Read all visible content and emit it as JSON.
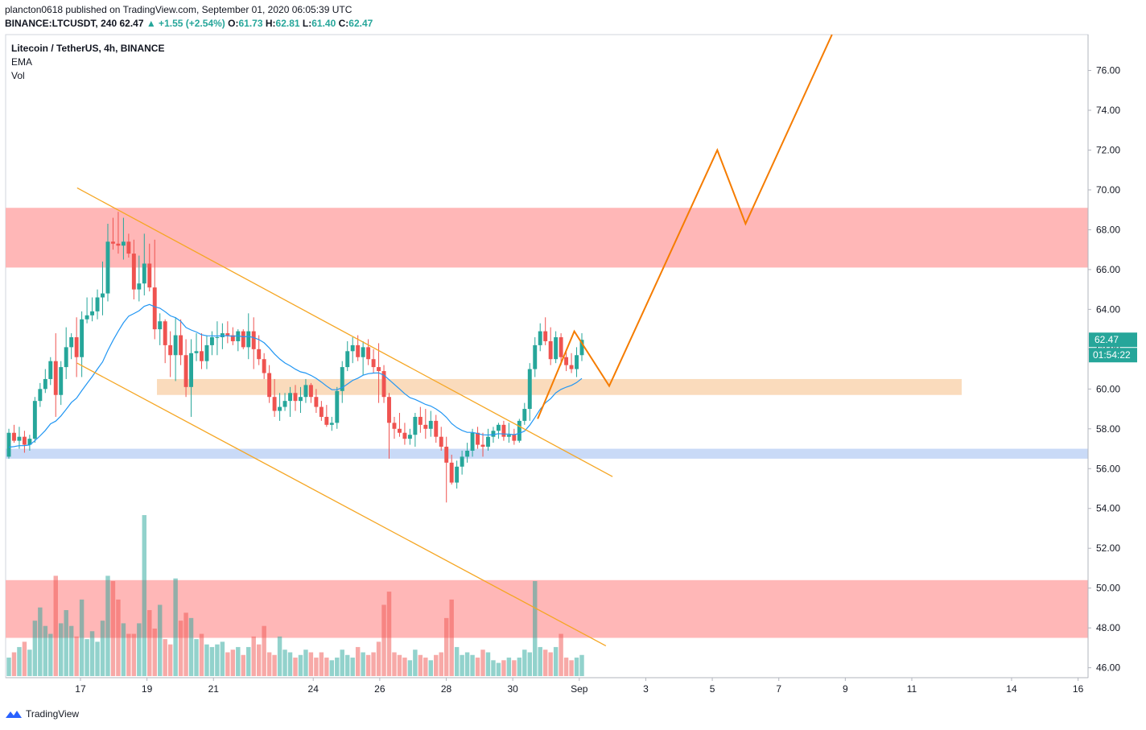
{
  "header": {
    "line1": "plancton0618 published on TradingView.com, September 01, 2020 06:05:39 UTC",
    "symbol": "BINANCE:LTCUSDT, 240",
    "last": "62.47",
    "change": "▲ +1.55 (+2.54%)",
    "o_label": "O:",
    "o": "61.73",
    "h_label": "H:",
    "h": "62.81",
    "l_label": "L:",
    "l": "61.40",
    "c_label": "C:",
    "c": "62.47"
  },
  "legend": {
    "title": "Litecoin / TetherUS, 4h, BINANCE",
    "ema": "EMA",
    "vol": "Vol"
  },
  "price_tag": {
    "value": "62.47",
    "countdown": "01:54:22",
    "color": "#26a69a"
  },
  "footer": {
    "brand": "TradingView"
  },
  "colors": {
    "up": "#26a69a",
    "down": "#ef5350",
    "ema": "#2196f3",
    "projection": "#f57c00",
    "channel": "#f5a623",
    "resistance_zone": "#ffb3b3",
    "support_zone": "#fad7b5",
    "demand_zone": "#c6d8f7"
  },
  "chart_data": {
    "type": "candlestick",
    "title": "Litecoin / TetherUS, 4h, BINANCE",
    "y_ticks": [
      "76.00",
      "74.00",
      "72.00",
      "70.00",
      "68.00",
      "66.00",
      "64.00",
      "62.00",
      "60.00",
      "58.00",
      "56.00",
      "54.00",
      "52.00",
      "50.00",
      "48.00",
      "46.00"
    ],
    "x_ticks": [
      {
        "label": "17",
        "d": 17
      },
      {
        "label": "19",
        "d": 19
      },
      {
        "label": "21",
        "d": 21
      },
      {
        "label": "24",
        "d": 24
      },
      {
        "label": "26",
        "d": 26
      },
      {
        "label": "28",
        "d": 28
      },
      {
        "label": "30",
        "d": 30
      },
      {
        "label": "Sep",
        "d": 32
      },
      {
        "label": "3",
        "d": 34
      },
      {
        "label": "5",
        "d": 36
      },
      {
        "label": "7",
        "d": 38
      },
      {
        "label": "9",
        "d": 40
      },
      {
        "label": "11",
        "d": 42
      },
      {
        "label": "14",
        "d": 45
      },
      {
        "label": "16",
        "d": 47
      }
    ],
    "ylim": [
      45.5,
      77.8
    ],
    "xlim_day": [
      14.75,
      47.3
    ],
    "zones": [
      {
        "name": "resistance",
        "y1": 66.1,
        "y2": 69.1,
        "d1": 14.75,
        "d2": 47.3
      },
      {
        "name": "support",
        "y1": 59.7,
        "y2": 60.5,
        "d1": 19.3,
        "d2": 43.5
      },
      {
        "name": "demand",
        "y1": 56.5,
        "y2": 57.0,
        "d1": 14.75,
        "d2": 47.3
      },
      {
        "name": "volume-zone",
        "y1": 47.5,
        "y2": 50.4,
        "d1": 14.75,
        "d2": 47.3
      }
    ],
    "channel_lines": [
      {
        "d1": 16.9,
        "y1": 70.1,
        "d2": 33.0,
        "y2": 55.6
      },
      {
        "d1": 16.9,
        "y1": 61.3,
        "d2": 32.8,
        "y2": 47.1
      }
    ],
    "projection": [
      {
        "d": 30.75,
        "y": 58.5
      },
      {
        "d": 31.85,
        "y": 62.9
      },
      {
        "d": 32.9,
        "y": 60.15
      },
      {
        "d": 36.15,
        "y": 72.0
      },
      {
        "d": 37.0,
        "y": 68.3
      },
      {
        "d": 39.6,
        "y": 77.8
      }
    ],
    "candles": [
      [
        56.6,
        58.0,
        56.5,
        57.8
      ],
      [
        57.8,
        58.2,
        57.3,
        57.4
      ],
      [
        57.4,
        58.1,
        57.0,
        57.6
      ],
      [
        57.6,
        57.9,
        56.8,
        57.2
      ],
      [
        57.2,
        57.7,
        56.9,
        57.5
      ],
      [
        57.5,
        59.6,
        57.3,
        59.4
      ],
      [
        59.4,
        60.3,
        59.1,
        60.0
      ],
      [
        60.0,
        61.0,
        59.8,
        60.5
      ],
      [
        60.5,
        61.6,
        60.2,
        61.4
      ],
      [
        61.4,
        62.8,
        58.6,
        59.7
      ],
      [
        59.7,
        61.4,
        59.2,
        61.1
      ],
      [
        61.1,
        63.1,
        60.5,
        62.1
      ],
      [
        62.1,
        62.8,
        61.5,
        62.6
      ],
      [
        62.6,
        63.6,
        60.6,
        61.6
      ],
      [
        61.6,
        63.9,
        60.6,
        63.5
      ],
      [
        63.5,
        64.6,
        63.3,
        63.7
      ],
      [
        63.7,
        64.6,
        63.4,
        63.9
      ],
      [
        63.9,
        65.0,
        63.5,
        64.6
      ],
      [
        64.6,
        66.4,
        63.7,
        64.8
      ],
      [
        64.8,
        68.3,
        64.4,
        67.4
      ],
      [
        67.4,
        68.6,
        67.0,
        67.3
      ],
      [
        67.3,
        68.9,
        66.8,
        67.2
      ],
      [
        67.2,
        68.6,
        66.5,
        67.4
      ],
      [
        67.4,
        67.8,
        66.6,
        66.8
      ],
      [
        66.8,
        67.5,
        64.5,
        65.0
      ],
      [
        65.0,
        66.7,
        64.4,
        65.3
      ],
      [
        65.3,
        67.8,
        64.7,
        66.3
      ],
      [
        66.3,
        67.3,
        64.9,
        65.1
      ],
      [
        65.1,
        67.5,
        62.5,
        63.0
      ],
      [
        63.0,
        63.8,
        62.2,
        63.4
      ],
      [
        63.4,
        63.5,
        61.3,
        62.2
      ],
      [
        62.2,
        62.9,
        60.6,
        61.7
      ],
      [
        61.7,
        63.6,
        60.4,
        62.7
      ],
      [
        62.7,
        63.5,
        61.2,
        61.7
      ],
      [
        61.7,
        62.5,
        59.6,
        60.1
      ],
      [
        60.1,
        62.5,
        58.6,
        61.8
      ],
      [
        61.8,
        62.8,
        61.4,
        61.9
      ],
      [
        61.9,
        62.8,
        61.0,
        61.4
      ],
      [
        61.4,
        62.7,
        61.0,
        62.2
      ],
      [
        62.2,
        62.9,
        61.7,
        62.6
      ],
      [
        62.6,
        63.4,
        61.7,
        62.6
      ],
      [
        62.6,
        63.3,
        62.0,
        62.8
      ],
      [
        62.8,
        63.4,
        62.3,
        62.7
      ],
      [
        62.7,
        63.1,
        62.2,
        62.4
      ],
      [
        62.4,
        63.0,
        61.9,
        62.9
      ],
      [
        62.9,
        63.0,
        62.0,
        62.1
      ],
      [
        62.1,
        63.8,
        61.5,
        62.9
      ],
      [
        62.9,
        63.6,
        61.0,
        62.0
      ],
      [
        62.0,
        62.7,
        61.2,
        61.5
      ],
      [
        61.5,
        61.8,
        60.5,
        60.8
      ],
      [
        60.8,
        61.2,
        59.3,
        59.6
      ],
      [
        59.6,
        60.5,
        58.6,
        58.9
      ],
      [
        58.9,
        59.8,
        58.4,
        59.1
      ],
      [
        59.1,
        59.8,
        58.9,
        59.4
      ],
      [
        59.4,
        60.1,
        58.6,
        59.8
      ],
      [
        59.8,
        60.2,
        58.9,
        59.4
      ],
      [
        59.4,
        60.1,
        58.8,
        59.6
      ],
      [
        59.6,
        60.5,
        59.3,
        60.2
      ],
      [
        60.2,
        60.3,
        59.3,
        59.6
      ],
      [
        59.6,
        60.0,
        58.8,
        59.1
      ],
      [
        59.1,
        59.4,
        58.4,
        58.6
      ],
      [
        58.6,
        59.2,
        58.1,
        58.2
      ],
      [
        58.2,
        58.6,
        57.9,
        58.3
      ],
      [
        58.3,
        60.1,
        58.0,
        59.9
      ],
      [
        59.9,
        61.4,
        59.3,
        61.1
      ],
      [
        61.1,
        62.4,
        60.9,
        61.9
      ],
      [
        61.9,
        62.6,
        61.3,
        62.2
      ],
      [
        62.2,
        62.7,
        61.4,
        61.6
      ],
      [
        61.6,
        62.4,
        60.7,
        62.1
      ],
      [
        62.1,
        62.5,
        61.2,
        61.5
      ],
      [
        61.5,
        62.0,
        60.8,
        61.1
      ],
      [
        61.1,
        62.3,
        59.3,
        60.9
      ],
      [
        60.9,
        61.2,
        59.3,
        59.6
      ],
      [
        59.6,
        59.8,
        56.5,
        58.3
      ],
      [
        58.3,
        58.6,
        57.5,
        58.0
      ],
      [
        58.0,
        58.8,
        57.6,
        57.8
      ],
      [
        57.8,
        58.3,
        57.2,
        57.5
      ],
      [
        57.5,
        58.0,
        57.2,
        57.7
      ],
      [
        57.7,
        58.8,
        57.1,
        58.6
      ],
      [
        58.6,
        59.1,
        57.8,
        58.2
      ],
      [
        58.2,
        59.0,
        57.5,
        58.0
      ],
      [
        58.0,
        58.9,
        57.6,
        58.4
      ],
      [
        58.4,
        58.7,
        57.3,
        57.6
      ],
      [
        57.6,
        58.1,
        56.9,
        57.1
      ],
      [
        57.1,
        57.6,
        54.3,
        56.3
      ],
      [
        56.3,
        56.7,
        55.2,
        55.3
      ],
      [
        55.3,
        56.4,
        55.0,
        56.1
      ],
      [
        56.1,
        56.9,
        55.7,
        56.6
      ],
      [
        56.6,
        57.3,
        56.3,
        56.9
      ],
      [
        56.9,
        58.0,
        56.6,
        57.8
      ],
      [
        57.8,
        58.1,
        57.0,
        57.2
      ],
      [
        57.2,
        57.8,
        56.6,
        57.1
      ],
      [
        57.1,
        58.0,
        56.9,
        57.6
      ],
      [
        57.6,
        58.1,
        57.3,
        57.9
      ],
      [
        57.9,
        58.3,
        57.5,
        58.2
      ],
      [
        58.2,
        58.4,
        57.4,
        57.6
      ],
      [
        57.6,
        58.3,
        57.3,
        57.7
      ],
      [
        57.7,
        58.0,
        57.2,
        57.4
      ],
      [
        57.4,
        58.5,
        57.3,
        58.4
      ],
      [
        58.4,
        59.3,
        58.2,
        59.0
      ],
      [
        59.0,
        61.3,
        58.4,
        61.0
      ],
      [
        61.0,
        62.6,
        60.6,
        62.2
      ],
      [
        62.2,
        63.3,
        61.9,
        62.9
      ],
      [
        62.9,
        63.6,
        62.2,
        62.4
      ],
      [
        62.4,
        63.1,
        61.2,
        61.5
      ],
      [
        61.5,
        62.9,
        61.3,
        62.6
      ],
      [
        62.6,
        62.8,
        61.2,
        61.6
      ],
      [
        61.6,
        61.9,
        60.9,
        61.2
      ],
      [
        61.2,
        61.8,
        60.8,
        61.0
      ],
      [
        61.0,
        62.1,
        60.6,
        61.7
      ],
      [
        61.7,
        62.8,
        61.4,
        62.47
      ]
    ],
    "volume": [
      {
        "v": 0.7
      },
      {
        "v": 0.9
      },
      {
        "v": 1.1
      },
      {
        "v": 1.3
      },
      {
        "v": 1.0
      },
      {
        "v": 2.1
      },
      {
        "v": 2.6
      },
      {
        "v": 1.9
      },
      {
        "v": 1.6
      },
      {
        "v": 3.8
      },
      {
        "v": 2.0
      },
      {
        "v": 2.5
      },
      {
        "v": 1.9
      },
      {
        "v": 1.5
      },
      {
        "v": 2.9
      },
      {
        "v": 1.4
      },
      {
        "v": 1.7
      },
      {
        "v": 1.3
      },
      {
        "v": 2.1
      },
      {
        "v": 3.8
      },
      {
        "v": 3.6
      },
      {
        "v": 2.9
      },
      {
        "v": 2.0
      },
      {
        "v": 1.6
      },
      {
        "v": 1.6
      },
      {
        "v": 2.0
      },
      {
        "v": 6.1
      },
      {
        "v": 2.5
      },
      {
        "v": 1.8
      },
      {
        "v": 2.7
      },
      {
        "v": 1.4
      },
      {
        "v": 1.2
      },
      {
        "v": 3.7
      },
      {
        "v": 2.1
      },
      {
        "v": 2.4
      },
      {
        "v": 2.2
      },
      {
        "v": 1.4
      },
      {
        "v": 1.6
      },
      {
        "v": 1.2
      },
      {
        "v": 1.1
      },
      {
        "v": 1.2
      },
      {
        "v": 1.3
      },
      {
        "v": 0.9
      },
      {
        "v": 1.0
      },
      {
        "v": 1.1
      },
      {
        "v": 0.8
      },
      {
        "v": 1.1
      },
      {
        "v": 1.5
      },
      {
        "v": 1.2
      },
      {
        "v": 1.9
      },
      {
        "v": 0.9
      },
      {
        "v": 0.8
      },
      {
        "v": 1.5
      },
      {
        "v": 1.0
      },
      {
        "v": 0.9
      },
      {
        "v": 0.7
      },
      {
        "v": 0.8
      },
      {
        "v": 1.0
      },
      {
        "v": 0.9
      },
      {
        "v": 0.7
      },
      {
        "v": 0.9
      },
      {
        "v": 0.7
      },
      {
        "v": 0.6
      },
      {
        "v": 0.7
      },
      {
        "v": 1.0
      },
      {
        "v": 0.8
      },
      {
        "v": 0.7
      },
      {
        "v": 1.1
      },
      {
        "v": 0.9
      },
      {
        "v": 0.8
      },
      {
        "v": 0.9
      },
      {
        "v": 1.3
      },
      {
        "v": 2.7
      },
      {
        "v": 3.2
      },
      {
        "v": 0.9
      },
      {
        "v": 0.8
      },
      {
        "v": 0.7
      },
      {
        "v": 0.6
      },
      {
        "v": 1.0
      },
      {
        "v": 0.8
      },
      {
        "v": 0.7
      },
      {
        "v": 0.6
      },
      {
        "v": 0.8
      },
      {
        "v": 0.9
      },
      {
        "v": 2.2
      },
      {
        "v": 2.9
      },
      {
        "v": 1.1
      },
      {
        "v": 0.8
      },
      {
        "v": 0.9
      },
      {
        "v": 0.8
      },
      {
        "v": 0.7
      },
      {
        "v": 1.0
      },
      {
        "v": 0.9
      },
      {
        "v": 0.6
      },
      {
        "v": 0.5
      },
      {
        "v": 0.6
      },
      {
        "v": 0.7
      },
      {
        "v": 0.6
      },
      {
        "v": 0.7
      },
      {
        "v": 1.0
      },
      {
        "v": 0.9
      },
      {
        "v": 3.6
      },
      {
        "v": 1.1
      },
      {
        "v": 1.0
      },
      {
        "v": 0.9
      },
      {
        "v": 1.1
      },
      {
        "v": 1.6
      },
      {
        "v": 0.7
      },
      {
        "v": 0.6
      },
      {
        "v": 0.7
      },
      {
        "v": 0.8
      }
    ]
  }
}
